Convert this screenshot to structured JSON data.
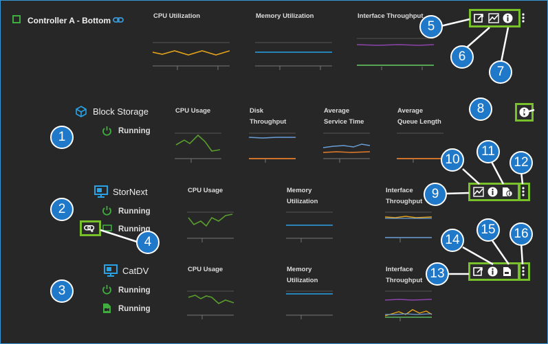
{
  "controller": {
    "title": "Controller A - Bottom",
    "charts": [
      "CPU Utilization",
      "Memory Utilization",
      "Interface Throughput"
    ]
  },
  "block_storage": {
    "title": "Block Storage",
    "status": "Running",
    "charts": [
      [
        "CPU Usage"
      ],
      [
        "Disk",
        "Throughput"
      ],
      [
        "Average",
        "Service Time"
      ],
      [
        "Average",
        "Queue Length"
      ]
    ]
  },
  "stornext": {
    "title": "StorNext",
    "status1": "Running",
    "status2": "Running",
    "charts": [
      [
        "CPU Usage"
      ],
      [
        "Memory",
        "Utilization"
      ],
      [
        "Interface",
        "Throughput"
      ]
    ]
  },
  "catdv": {
    "title": "CatDV",
    "status1": "Running",
    "status2": "Running",
    "charts": [
      [
        "CPU Usage"
      ],
      [
        "Memory",
        "Utilization"
      ],
      [
        "Interface",
        "Throughput"
      ]
    ]
  },
  "callouts": [
    "1",
    "2",
    "3",
    "4",
    "5",
    "6",
    "7",
    "8",
    "9",
    "10",
    "11",
    "12",
    "13",
    "14",
    "15",
    "16"
  ],
  "colors": {
    "accent_green": "#78c12a",
    "callout_blue": "#1f78c8",
    "running_green": "#3fae3f",
    "monitor_blue": "#29a3e8"
  }
}
